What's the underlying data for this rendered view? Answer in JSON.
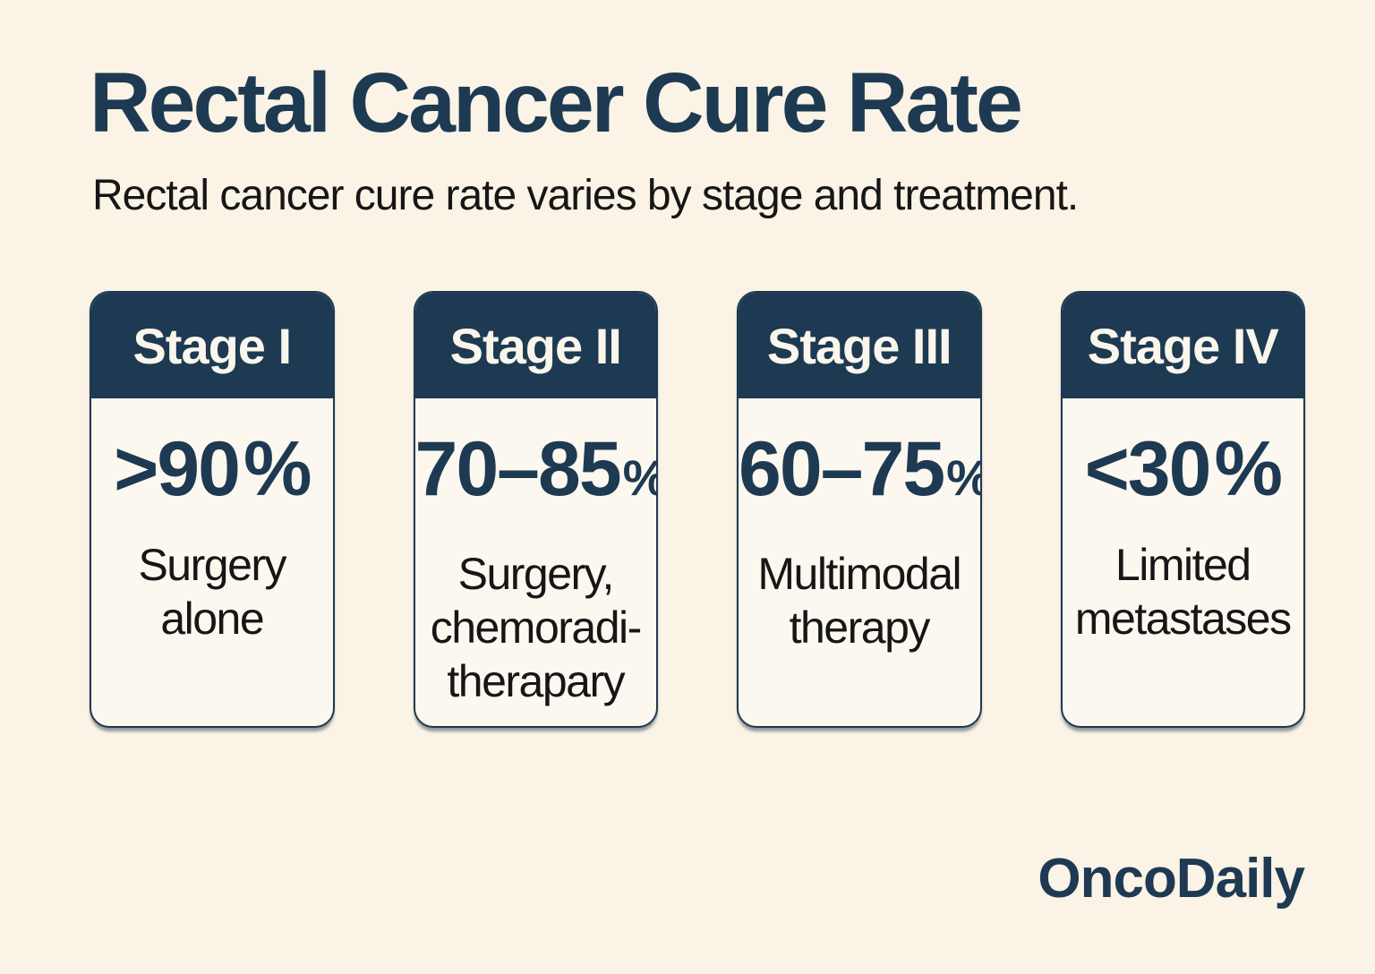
{
  "page": {
    "title": "Rectal Cancer Cure Rate",
    "subtitle": "Rectal cancer cure rate varies by stage and treatment.",
    "brand": "OncoDaily"
  },
  "colors": {
    "background": "#faf3e6",
    "card_body": "#fcf8ef",
    "navy": "#1d3a52",
    "header_text": "#faf6ec",
    "text_dark": "#161616"
  },
  "cards": [
    {
      "stage": "Stage I",
      "rate_value": ">90",
      "rate_suffix": "%",
      "desc_lines": [
        "Surgery",
        "alone"
      ]
    },
    {
      "stage": "Stage II",
      "rate_value": "70–85",
      "rate_suffix": "%",
      "desc_lines": [
        "Surgery,",
        "chemoradi-",
        "therapary"
      ]
    },
    {
      "stage": "Stage III",
      "rate_value": "60–75",
      "rate_suffix": "%",
      "desc_lines": [
        "Multimodal",
        "therapy"
      ]
    },
    {
      "stage": "Stage IV",
      "rate_value": "<30",
      "rate_suffix": "%",
      "desc_lines": [
        "Limited",
        "metastases"
      ]
    }
  ]
}
